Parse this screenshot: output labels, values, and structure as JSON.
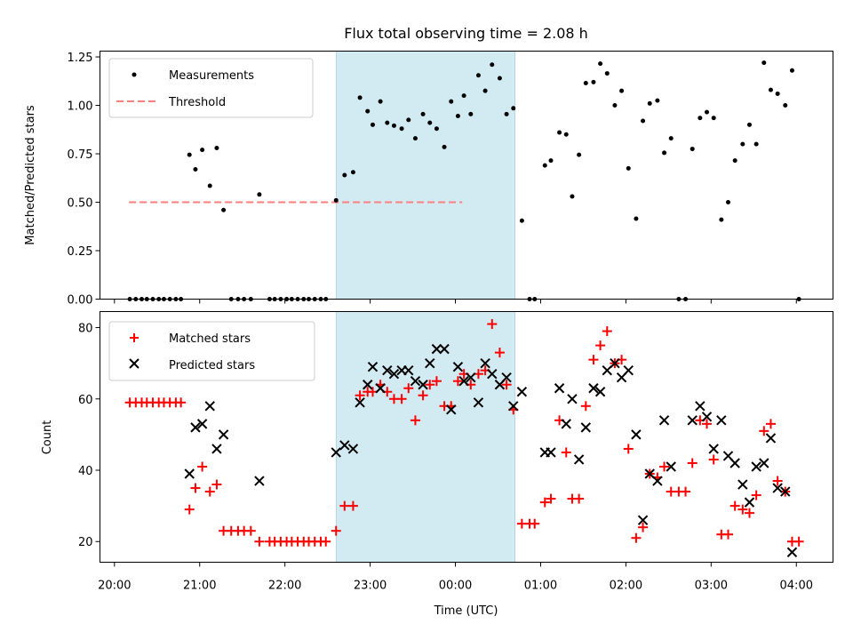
{
  "chart_data": [
    {
      "type": "scatter",
      "title": "Flux total observing time = 2.08 h",
      "xlabel": "",
      "ylabel": "Matched/Predicted stars",
      "ylim": [
        0,
        1.28
      ],
      "yticks": [
        "0.00",
        "0.25",
        "0.50",
        "0.75",
        "1.00",
        "1.25"
      ],
      "legend_position": "top-left",
      "shaded_interval_hours": [
        22.6,
        24.7
      ],
      "threshold": {
        "name": "Threshold",
        "y": 0.5,
        "x_range": [
          20.17,
          24.08
        ],
        "color": "#ff7f7f"
      },
      "series": [
        {
          "name": "Measurements",
          "marker": "dot",
          "color": "#000000",
          "points": [
            [
              20.18,
              0
            ],
            [
              20.25,
              0
            ],
            [
              20.32,
              0
            ],
            [
              20.38,
              0
            ],
            [
              20.45,
              0
            ],
            [
              20.52,
              0
            ],
            [
              20.58,
              0
            ],
            [
              20.65,
              0
            ],
            [
              20.72,
              0
            ],
            [
              20.78,
              0
            ],
            [
              20.88,
              0.745
            ],
            [
              20.95,
              0.67
            ],
            [
              21.03,
              0.77
            ],
            [
              21.12,
              0.585
            ],
            [
              21.2,
              0.78
            ],
            [
              21.28,
              0.46
            ],
            [
              21.37,
              0
            ],
            [
              21.45,
              0
            ],
            [
              21.52,
              0
            ],
            [
              21.6,
              0
            ],
            [
              21.7,
              0.54
            ],
            [
              21.82,
              0
            ],
            [
              21.88,
              0
            ],
            [
              21.95,
              0
            ],
            [
              22.02,
              0
            ],
            [
              22.08,
              0
            ],
            [
              22.15,
              0
            ],
            [
              22.22,
              0
            ],
            [
              22.28,
              0
            ],
            [
              22.35,
              0
            ],
            [
              22.42,
              0
            ],
            [
              22.48,
              0
            ],
            [
              22.6,
              0.51
            ],
            [
              22.7,
              0.64
            ],
            [
              22.8,
              0.655
            ],
            [
              22.88,
              1.04
            ],
            [
              22.97,
              0.97
            ],
            [
              23.03,
              0.9
            ],
            [
              23.12,
              1.02
            ],
            [
              23.2,
              0.91
            ],
            [
              23.28,
              0.895
            ],
            [
              23.37,
              0.88
            ],
            [
              23.45,
              0.925
            ],
            [
              23.53,
              0.83
            ],
            [
              23.62,
              0.955
            ],
            [
              23.7,
              0.91
            ],
            [
              23.78,
              0.88
            ],
            [
              23.87,
              0.785
            ],
            [
              23.95,
              1.02
            ],
            [
              24.03,
              0.945
            ],
            [
              24.1,
              1.05
            ],
            [
              24.18,
              0.955
            ],
            [
              24.27,
              1.155
            ],
            [
              24.35,
              1.075
            ],
            [
              24.43,
              1.21
            ],
            [
              24.52,
              1.14
            ],
            [
              24.6,
              0.955
            ],
            [
              24.68,
              0.985
            ],
            [
              24.78,
              0.405
            ],
            [
              24.87,
              0
            ],
            [
              24.93,
              0
            ],
            [
              25.05,
              0.69
            ],
            [
              25.12,
              0.715
            ],
            [
              25.22,
              0.86
            ],
            [
              25.3,
              0.85
            ],
            [
              25.37,
              0.53
            ],
            [
              25.45,
              0.745
            ],
            [
              25.53,
              1.115
            ],
            [
              25.62,
              1.12
            ],
            [
              25.7,
              1.215
            ],
            [
              25.78,
              1.165
            ],
            [
              25.87,
              1.0
            ],
            [
              25.95,
              1.075
            ],
            [
              26.03,
              0.675
            ],
            [
              26.12,
              0.415
            ],
            [
              26.2,
              0.92
            ],
            [
              26.28,
              1.01
            ],
            [
              26.37,
              1.025
            ],
            [
              26.45,
              0.755
            ],
            [
              26.53,
              0.83
            ],
            [
              26.62,
              0
            ],
            [
              26.7,
              0
            ],
            [
              26.78,
              0.775
            ],
            [
              26.87,
              0.935
            ],
            [
              26.95,
              0.965
            ],
            [
              27.03,
              0.935
            ],
            [
              27.12,
              0.41
            ],
            [
              27.2,
              0.5
            ],
            [
              27.28,
              0.715
            ],
            [
              27.37,
              0.8
            ],
            [
              27.45,
              0.9
            ],
            [
              27.53,
              0.8
            ],
            [
              27.62,
              1.22
            ],
            [
              27.7,
              1.08
            ],
            [
              27.78,
              1.06
            ],
            [
              27.87,
              1.0
            ],
            [
              27.95,
              1.18
            ],
            [
              28.03,
              0
            ]
          ]
        }
      ]
    },
    {
      "type": "scatter",
      "title": "",
      "xlabel": "Time (UTC)",
      "ylabel": "Count",
      "ylim": [
        14.2,
        84.5
      ],
      "yticks": [
        "20",
        "40",
        "60",
        "80"
      ],
      "xlim_hours": [
        19.83,
        28.43
      ],
      "xticks": [
        {
          "h": 20,
          "label": "20:00"
        },
        {
          "h": 21,
          "label": "21:00"
        },
        {
          "h": 22,
          "label": "22:00"
        },
        {
          "h": 23,
          "label": "23:00"
        },
        {
          "h": 24,
          "label": "00:00"
        },
        {
          "h": 25,
          "label": "01:00"
        },
        {
          "h": 26,
          "label": "02:00"
        },
        {
          "h": 27,
          "label": "03:00"
        },
        {
          "h": 28,
          "label": "04:00"
        }
      ],
      "legend_position": "top-left",
      "shaded_interval_hours": [
        22.6,
        24.7
      ],
      "series": [
        {
          "name": "Matched stars",
          "marker": "plus",
          "color": "#ff0000",
          "points": [
            [
              20.18,
              59
            ],
            [
              20.25,
              59
            ],
            [
              20.32,
              59
            ],
            [
              20.38,
              59
            ],
            [
              20.45,
              59
            ],
            [
              20.52,
              59
            ],
            [
              20.58,
              59
            ],
            [
              20.65,
              59
            ],
            [
              20.72,
              59
            ],
            [
              20.78,
              59
            ],
            [
              20.88,
              29
            ],
            [
              20.95,
              35
            ],
            [
              21.03,
              41
            ],
            [
              21.12,
              34
            ],
            [
              21.2,
              36
            ],
            [
              21.28,
              23
            ],
            [
              21.37,
              23
            ],
            [
              21.45,
              23
            ],
            [
              21.52,
              23
            ],
            [
              21.6,
              23
            ],
            [
              21.7,
              20
            ],
            [
              21.82,
              20
            ],
            [
              21.88,
              20
            ],
            [
              21.95,
              20
            ],
            [
              22.02,
              20
            ],
            [
              22.08,
              20
            ],
            [
              22.15,
              20
            ],
            [
              22.22,
              20
            ],
            [
              22.28,
              20
            ],
            [
              22.35,
              20
            ],
            [
              22.42,
              20
            ],
            [
              22.48,
              20
            ],
            [
              22.6,
              23
            ],
            [
              22.7,
              30
            ],
            [
              22.8,
              30
            ],
            [
              22.88,
              61
            ],
            [
              22.97,
              62
            ],
            [
              23.03,
              62
            ],
            [
              23.12,
              64
            ],
            [
              23.2,
              62
            ],
            [
              23.28,
              60
            ],
            [
              23.37,
              60
            ],
            [
              23.45,
              63
            ],
            [
              23.53,
              54
            ],
            [
              23.62,
              61
            ],
            [
              23.7,
              64
            ],
            [
              23.78,
              65
            ],
            [
              23.87,
              58
            ],
            [
              23.95,
              58
            ],
            [
              24.03,
              65
            ],
            [
              24.1,
              67
            ],
            [
              24.18,
              64
            ],
            [
              24.27,
              67
            ],
            [
              24.35,
              68
            ],
            [
              24.43,
              81
            ],
            [
              24.52,
              73
            ],
            [
              24.6,
              64
            ],
            [
              24.68,
              57
            ],
            [
              24.78,
              25
            ],
            [
              24.87,
              25
            ],
            [
              24.93,
              25
            ],
            [
              25.05,
              31
            ],
            [
              25.12,
              32
            ],
            [
              25.22,
              54
            ],
            [
              25.3,
              45
            ],
            [
              25.37,
              32
            ],
            [
              25.45,
              32
            ],
            [
              25.53,
              58
            ],
            [
              25.62,
              71
            ],
            [
              25.7,
              75
            ],
            [
              25.78,
              79
            ],
            [
              25.87,
              70
            ],
            [
              25.95,
              71
            ],
            [
              26.03,
              46
            ],
            [
              26.12,
              21
            ],
            [
              26.2,
              24
            ],
            [
              26.28,
              39
            ],
            [
              26.37,
              38
            ],
            [
              26.45,
              41
            ],
            [
              26.53,
              34
            ],
            [
              26.62,
              34
            ],
            [
              26.7,
              34
            ],
            [
              26.78,
              42
            ],
            [
              26.87,
              54
            ],
            [
              26.95,
              53
            ],
            [
              27.03,
              43
            ],
            [
              27.12,
              22
            ],
            [
              27.2,
              22
            ],
            [
              27.28,
              30
            ],
            [
              27.37,
              29
            ],
            [
              27.45,
              28
            ],
            [
              27.53,
              33
            ],
            [
              27.62,
              51
            ],
            [
              27.7,
              53
            ],
            [
              27.78,
              37
            ],
            [
              27.87,
              34
            ],
            [
              27.95,
              20
            ],
            [
              28.03,
              20
            ]
          ]
        },
        {
          "name": "Predicted stars",
          "marker": "x",
          "color": "#000000",
          "points": [
            [
              20.88,
              39
            ],
            [
              20.95,
              52
            ],
            [
              21.03,
              53
            ],
            [
              21.12,
              58
            ],
            [
              21.2,
              46
            ],
            [
              21.28,
              50
            ],
            [
              21.7,
              37
            ],
            [
              22.6,
              45
            ],
            [
              22.7,
              47
            ],
            [
              22.8,
              46
            ],
            [
              22.88,
              59
            ],
            [
              22.97,
              64
            ],
            [
              23.03,
              69
            ],
            [
              23.12,
              63
            ],
            [
              23.2,
              68
            ],
            [
              23.28,
              67
            ],
            [
              23.37,
              68
            ],
            [
              23.45,
              68
            ],
            [
              23.53,
              65
            ],
            [
              23.62,
              64
            ],
            [
              23.7,
              70
            ],
            [
              23.78,
              74
            ],
            [
              23.87,
              74
            ],
            [
              23.95,
              57
            ],
            [
              24.03,
              69
            ],
            [
              24.1,
              65
            ],
            [
              24.18,
              66
            ],
            [
              24.27,
              59
            ],
            [
              24.35,
              70
            ],
            [
              24.43,
              67
            ],
            [
              24.52,
              64
            ],
            [
              24.6,
              66
            ],
            [
              24.68,
              58
            ],
            [
              24.78,
              62
            ],
            [
              25.05,
              45
            ],
            [
              25.12,
              45
            ],
            [
              25.22,
              63
            ],
            [
              25.3,
              53
            ],
            [
              25.37,
              60
            ],
            [
              25.45,
              43
            ],
            [
              25.53,
              52
            ],
            [
              25.62,
              63
            ],
            [
              25.7,
              62
            ],
            [
              25.78,
              68
            ],
            [
              25.87,
              70
            ],
            [
              25.95,
              66
            ],
            [
              26.03,
              68
            ],
            [
              26.12,
              50
            ],
            [
              26.2,
              26
            ],
            [
              26.28,
              39
            ],
            [
              26.37,
              37
            ],
            [
              26.45,
              54
            ],
            [
              26.53,
              41
            ],
            [
              26.78,
              54
            ],
            [
              26.87,
              58
            ],
            [
              26.95,
              55
            ],
            [
              27.03,
              46
            ],
            [
              27.12,
              54
            ],
            [
              27.2,
              44
            ],
            [
              27.28,
              42
            ],
            [
              27.37,
              36
            ],
            [
              27.45,
              31
            ],
            [
              27.53,
              41
            ],
            [
              27.62,
              42
            ],
            [
              27.7,
              49
            ],
            [
              27.78,
              35
            ],
            [
              27.87,
              34
            ],
            [
              27.95,
              17
            ]
          ]
        }
      ]
    }
  ]
}
